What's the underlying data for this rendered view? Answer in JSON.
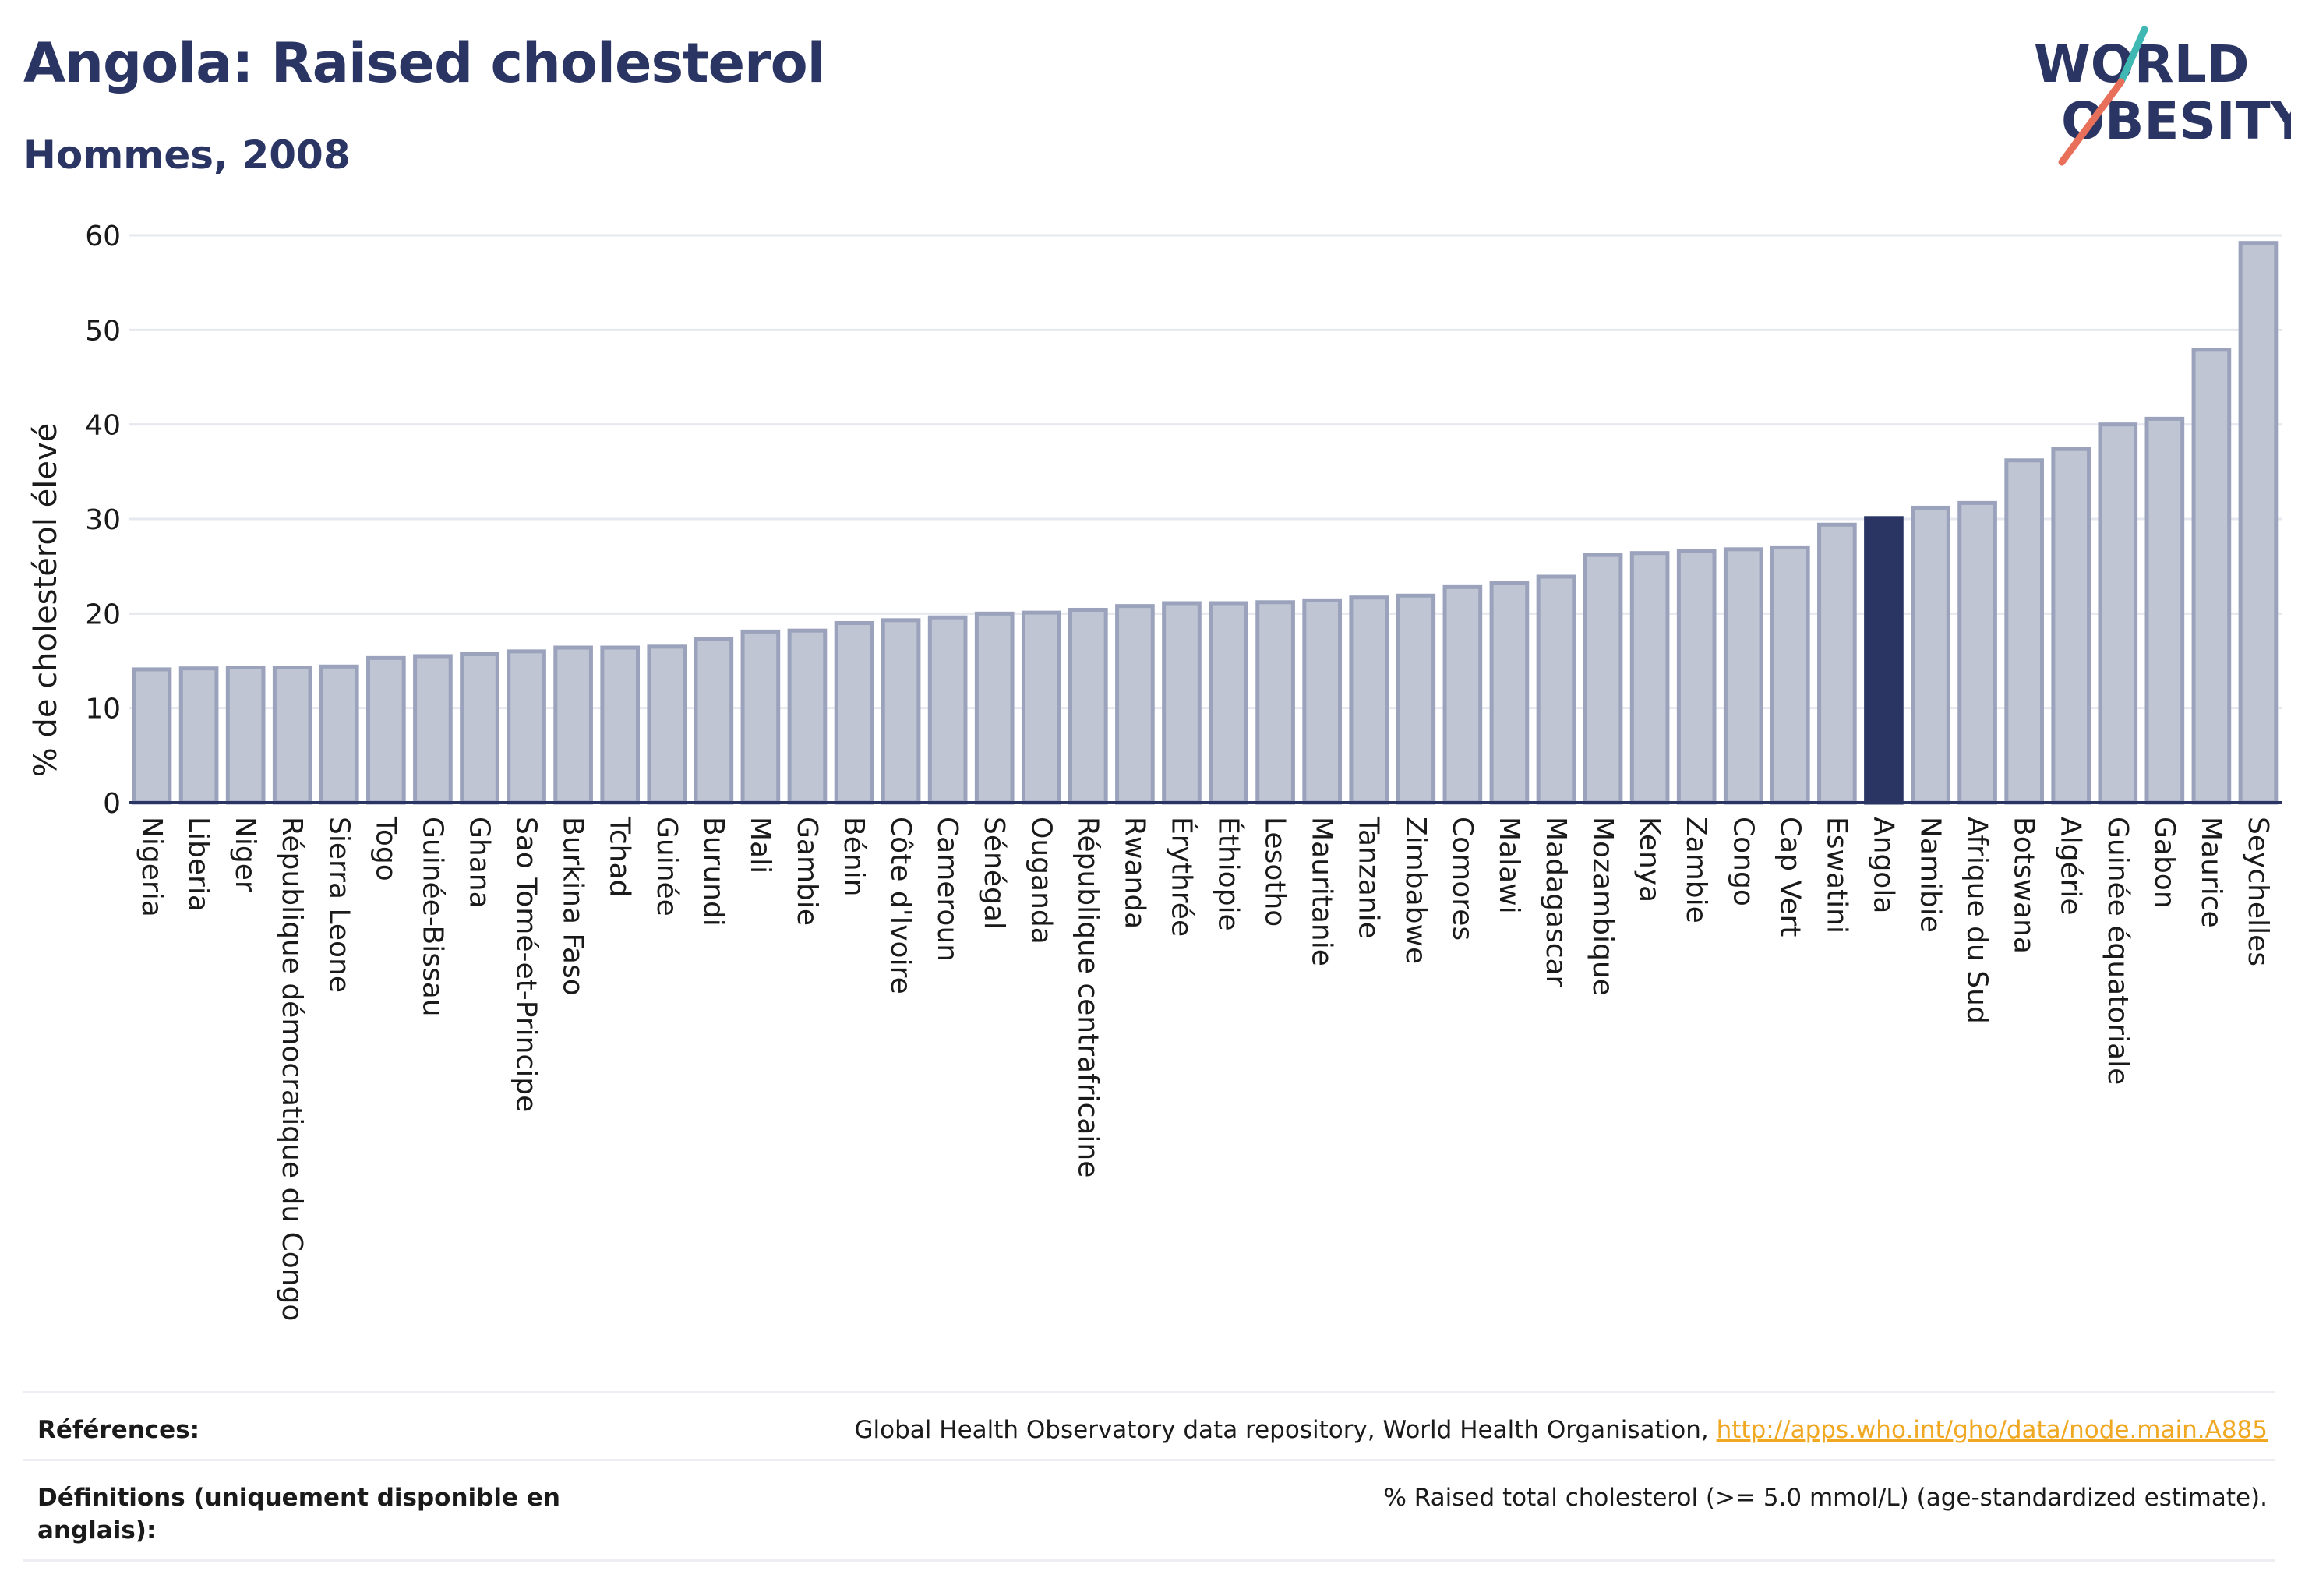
{
  "header": {
    "title": "Angola: Raised cholesterol",
    "subtitle": "Hommes, 2008"
  },
  "logo": {
    "line1": "WORLD",
    "line2": "OBESITY",
    "colors": {
      "text": "#2b3563",
      "slash_teal": "#3fb8b3",
      "slash_coral": "#e8705a"
    }
  },
  "chart_data": {
    "type": "bar",
    "title": "",
    "xlabel": "",
    "ylabel": "% de cholestérol élevé",
    "ylim": [
      0,
      60
    ],
    "yticks": [
      0,
      10,
      20,
      30,
      40,
      50,
      60
    ],
    "grid": true,
    "highlight": "Angola",
    "colors": {
      "bar": "#c0c5d3",
      "bar_stroke": "#9aa2bc",
      "highlight": "#2b3563",
      "grid": "#e6e8ef",
      "axis": "#2b3563"
    },
    "categories": [
      "Nigeria",
      "Liberia",
      "Niger",
      "République démocratique du Congo",
      "Sierra Leone",
      "Togo",
      "Guinée-Bissau",
      "Ghana",
      "Sao Tomé-et-Principe",
      "Burkina Faso",
      "Tchad",
      "Guinée",
      "Burundi",
      "Mali",
      "Gambie",
      "Bénin",
      "Côte d'Ivoire",
      "Cameroun",
      "Sénégal",
      "Ouganda",
      "République centrafricaine",
      "Rwanda",
      "Érythrée",
      "Éthiopie",
      "Lesotho",
      "Mauritanie",
      "Tanzanie",
      "Zimbabwe",
      "Comores",
      "Malawi",
      "Madagascar",
      "Mozambique",
      "Kenya",
      "Zambie",
      "Congo",
      "Cap Vert",
      "Eswatini",
      "Angola",
      "Namibie",
      "Afrique du Sud",
      "Botswana",
      "Algérie",
      "Guinée équatoriale",
      "Gabon",
      "Maurice",
      "Seychelles"
    ],
    "values": [
      14.1,
      14.2,
      14.3,
      14.3,
      14.4,
      15.3,
      15.5,
      15.7,
      16.0,
      16.4,
      16.4,
      16.5,
      17.3,
      18.1,
      18.2,
      19.0,
      19.3,
      19.6,
      20.0,
      20.1,
      20.4,
      20.8,
      21.1,
      21.1,
      21.2,
      21.4,
      21.7,
      21.9,
      22.8,
      23.2,
      23.9,
      26.2,
      26.4,
      26.6,
      26.8,
      27.0,
      29.4,
      30.1,
      31.2,
      31.7,
      36.2,
      37.4,
      40.0,
      40.6,
      47.9,
      59.2
    ]
  },
  "footer": {
    "references_label": "Références:",
    "references_text": "Global Health Observatory data repository, World Health Organisation, ",
    "references_link": "http://apps.who.int/gho/data/node.main.A885",
    "definitions_label": "Définitions (uniquement disponible en anglais):",
    "definitions_text": "% Raised total cholesterol (>= 5.0 mmol/L) (age-standardized estimate)."
  }
}
